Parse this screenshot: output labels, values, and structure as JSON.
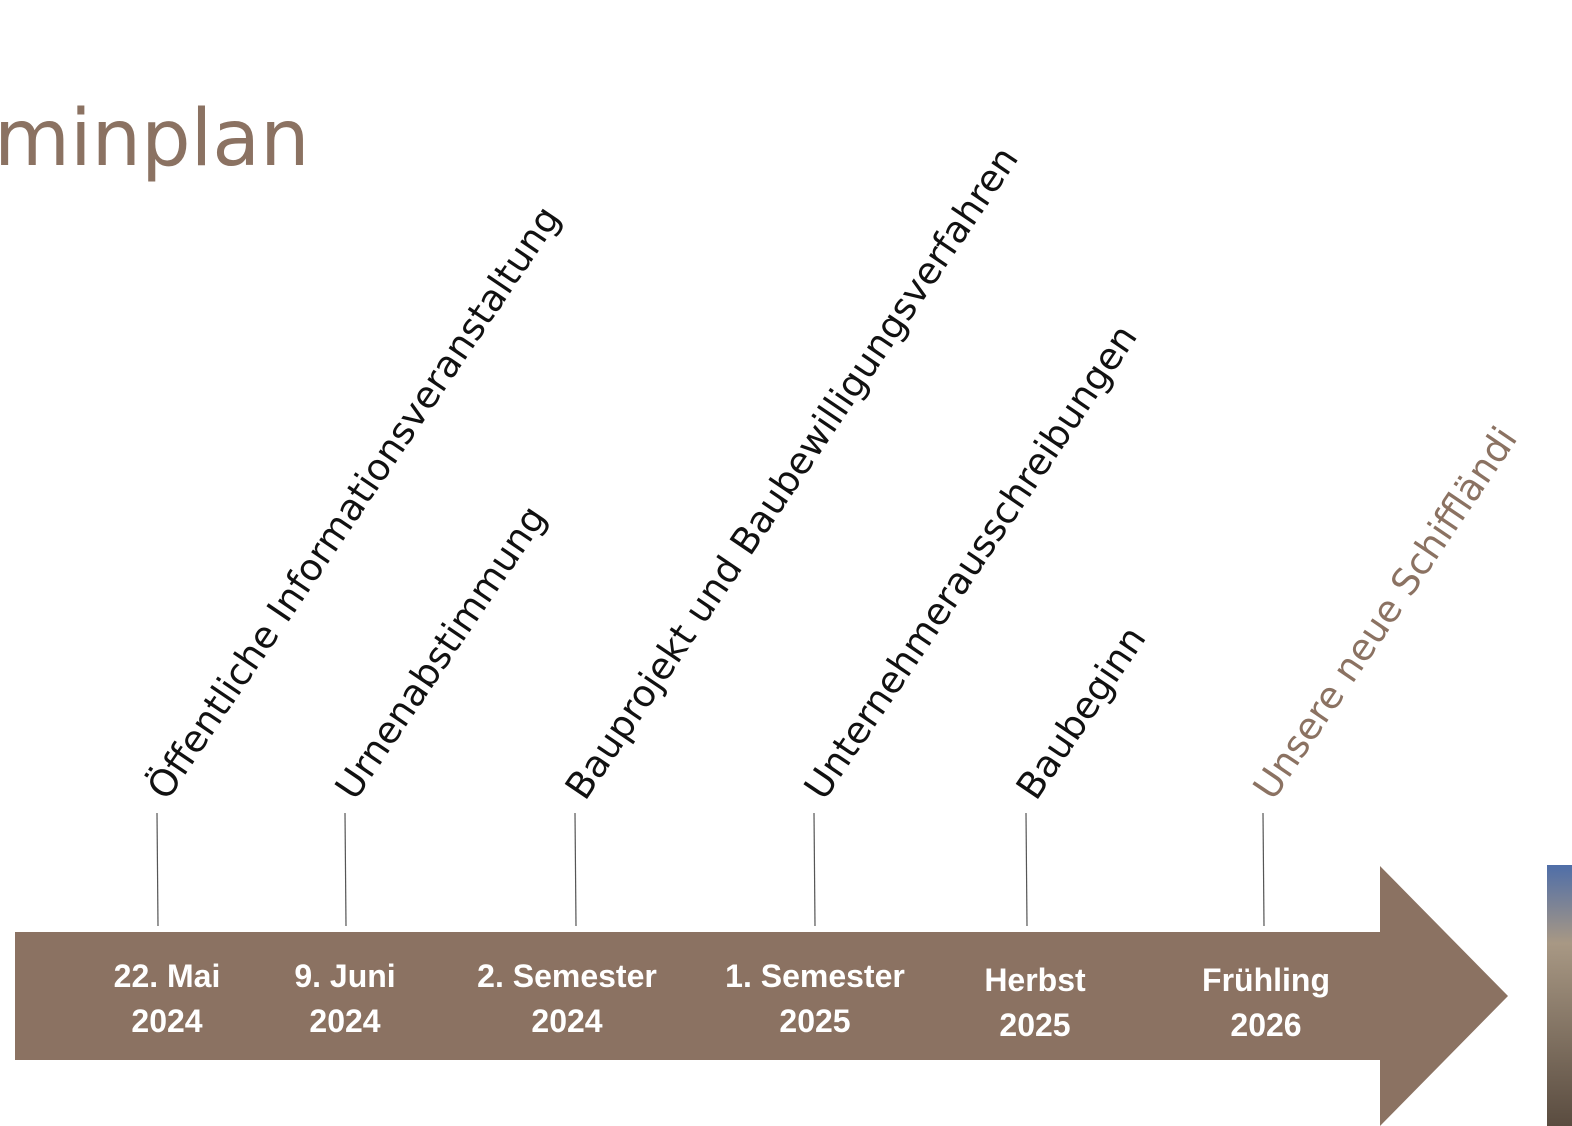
{
  "header": {
    "title": "minplan"
  },
  "milestones": [
    {
      "label": "Öffentliche Informationsveranstaltung",
      "date": [
        "22. Mai",
        "2024"
      ]
    },
    {
      "label": "Urnenabstimmung",
      "date": [
        "9. Juni",
        "2024"
      ]
    },
    {
      "label": "Bauprojekt und Baubewilligungsverfahren",
      "date": [
        "2. Semester",
        "2024"
      ]
    },
    {
      "label": "Unternehmerausschreibungen",
      "date": [
        "1. Semester",
        "2025"
      ]
    },
    {
      "label": "Baubeginn",
      "date": [
        "Herbst",
        "2025"
      ]
    },
    {
      "label": "Unsere neue Schiffländi",
      "date": [
        "Frühling",
        "2026"
      ]
    }
  ]
}
